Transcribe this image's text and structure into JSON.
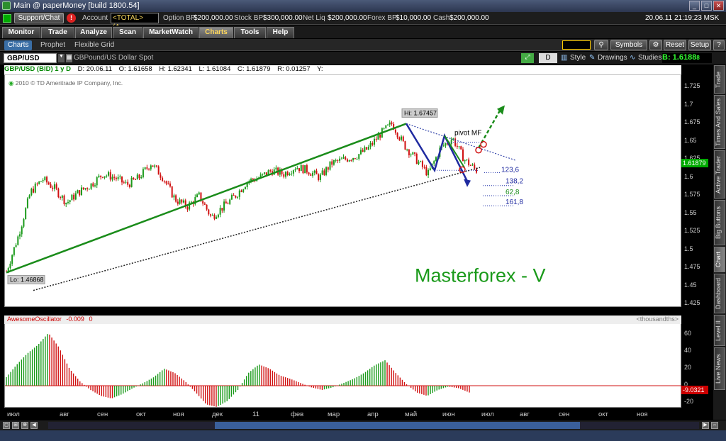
{
  "window": {
    "title": "Main @ paperMoney [build 1800.54]"
  },
  "account_bar": {
    "support_label": "Support/Chat",
    "alert_count": "!",
    "account_label": "Account",
    "account_value": "<TOTAL> (A...",
    "option_bp_label": "Option BP",
    "option_bp": "$200,000.00",
    "stock_bp_label": "Stock BP",
    "stock_bp": "$300,000.00",
    "net_liq_label": "Net Liq",
    "net_liq": "$200,000.00",
    "forex_bp_label": "Forex BP",
    "forex_bp": "$10,000.00",
    "cash_label": "Cash",
    "cash": "$200,000.00",
    "datetime": "20.06.11 21:19:23 MSK"
  },
  "tabs": [
    {
      "label": "Monitor"
    },
    {
      "label": "Trade"
    },
    {
      "label": "Analyze"
    },
    {
      "label": "Scan"
    },
    {
      "label": "MarketWatch"
    },
    {
      "label": "Charts"
    },
    {
      "label": "Tools"
    },
    {
      "label": "Help"
    }
  ],
  "subtabs": [
    {
      "label": "Charts"
    },
    {
      "label": "Prophet"
    },
    {
      "label": "Flexible Grid"
    }
  ],
  "toolbar_buttons": {
    "symbols": "Symbols",
    "reset": "Reset",
    "setup": "Setup"
  },
  "chart_toolbar": {
    "symbol": "GBP/USD",
    "description": "GBPound/US Dollar Spot",
    "period": "D",
    "style": "Style",
    "drawings": "Drawings",
    "studies": "Studies",
    "bid": "B: 1.6188",
    "bid_small": "8"
  },
  "ohlc": {
    "label": "GBP/USD (BID) 1 y D",
    "date": "D: 20.06.11",
    "open": "O: 1.61658",
    "high": "H: 1.62341",
    "low": "L: 1.61084",
    "close": "C: 1.61879",
    "range": "R: 0.01257",
    "y": "Y:"
  },
  "copyright": "2010 © TD Ameritrade IP Company, Inc.",
  "annotations": {
    "hi_label": "Hi: 1.67457",
    "lo_label": "Lo: 1.46868",
    "pivot": "pivot MF",
    "fib_1236": "123,6",
    "fib_1382": "138,2",
    "fib_618": "62,8",
    "fib_1618": "161,8",
    "watermark": "Masterforex - V"
  },
  "current_price": "1.61879",
  "oscillator": {
    "name": "AwesomeOscillator",
    "value": "-0.009",
    "zero": "0",
    "units": "<thousandths>",
    "current": "-9.0321"
  },
  "right_tabs": [
    {
      "label": "Trade"
    },
    {
      "label": "Times And Sales"
    },
    {
      "label": "Active Trader"
    },
    {
      "label": "Big Buttons"
    },
    {
      "label": "Chart"
    },
    {
      "label": "Dashboard"
    },
    {
      "label": "Level II"
    },
    {
      "label": "Live News"
    }
  ],
  "chart_data": {
    "type": "candlestick",
    "title": "GBP/USD (BID) 1 y D",
    "ylim": [
      1.425,
      1.725
    ],
    "yticks": [
      1.725,
      1.7,
      1.675,
      1.65,
      1.625,
      1.6,
      1.575,
      1.55,
      1.525,
      1.5,
      1.475,
      1.45,
      1.425
    ],
    "ytick_labels": [
      "1.725",
      "1.7",
      "1.675",
      "1.65",
      "1.625",
      "1.6",
      "1.575",
      "1.55",
      "1.525",
      "1.5",
      "1.475",
      "1.45",
      "1.425"
    ],
    "months": [
      "июл",
      "авг",
      "сен",
      "окт",
      "ноя",
      "дек",
      "11",
      "фев",
      "мар",
      "апр",
      "май",
      "июн",
      "июл",
      "авг",
      "сен",
      "окт",
      "ноя"
    ],
    "close_path": [
      1.47,
      1.52,
      1.58,
      1.598,
      1.585,
      1.565,
      1.58,
      1.59,
      1.605,
      1.6,
      1.59,
      1.6,
      1.62,
      1.6,
      1.57,
      1.56,
      1.575,
      1.545,
      1.56,
      1.575,
      1.595,
      1.6,
      1.61,
      1.605,
      1.615,
      1.61,
      1.6,
      1.62,
      1.625,
      1.63,
      1.64,
      1.66,
      1.675,
      1.645,
      1.625,
      1.605,
      1.64,
      1.655,
      1.625,
      1.61
    ],
    "oscillator": {
      "ylim": [
        -25,
        65
      ],
      "yticks": [
        60,
        40,
        20,
        0,
        -20
      ],
      "values": [
        10,
        25,
        38,
        48,
        62,
        45,
        20,
        5,
        -5,
        -12,
        -15,
        -10,
        -3,
        3,
        10,
        20,
        15,
        5,
        -8,
        -22,
        -25,
        -18,
        -5,
        15,
        25,
        20,
        12,
        8,
        3,
        -2,
        -5,
        -2,
        3,
        8,
        15,
        24,
        30,
        15,
        2,
        -8,
        -12,
        -5,
        -1,
        -3,
        -8
      ]
    }
  }
}
